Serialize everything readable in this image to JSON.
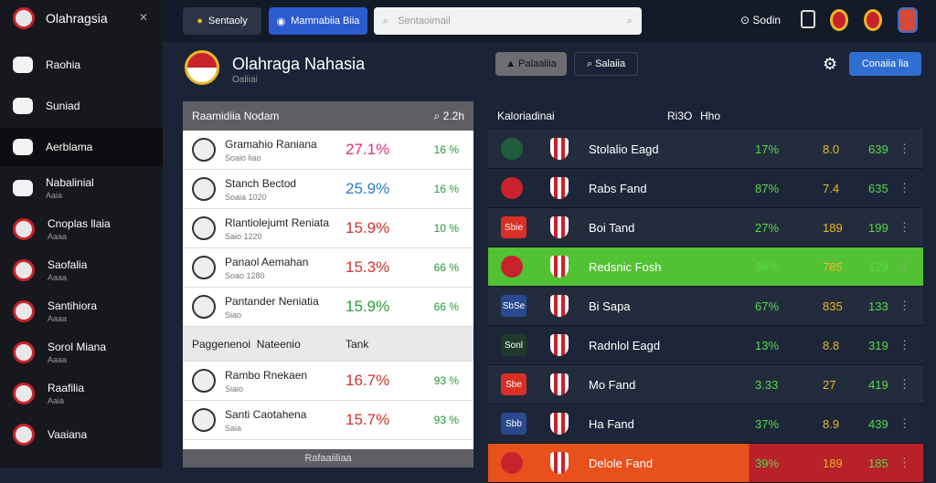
{
  "sidebar": {
    "brand": "Olahragsia",
    "items": [
      {
        "label": "Raohia",
        "sub": null
      },
      {
        "label": "Suniad",
        "sub": null
      },
      {
        "label": "Aerblama",
        "sub": null
      },
      {
        "label": "Nabalinial",
        "sub": "Aaia"
      },
      {
        "label": "Cnoplas llaia",
        "sub": "Aaaa"
      },
      {
        "label": "Saofalia",
        "sub": "Aaaa"
      },
      {
        "label": "Santihiora",
        "sub": "Aaaa"
      },
      {
        "label": "Sorol Miana",
        "sub": "Aaaa"
      },
      {
        "label": "Raafilia",
        "sub": "Aaia"
      },
      {
        "label": "Vaaiana",
        "sub": null
      }
    ]
  },
  "topbar": {
    "tab1": "Sentaoly",
    "tab2": "Mamnabiia Biia",
    "search": "Sentaoimail",
    "account": "Sodin"
  },
  "header": {
    "title": "Olahraga Nahasia",
    "subtitle": "Oaliiai",
    "filter1": "Palaaliia",
    "filter2": "Salaiia",
    "action": "Conaiia lia"
  },
  "left_panel": {
    "title": "Raamidiia Nodam",
    "count": "2.2h",
    "rows": [
      {
        "name": "Gramahio Raniana",
        "sub": "Soaio liao",
        "pct": "27.1%",
        "odds": "16 %"
      },
      {
        "name": "Stanch Bectod",
        "sub": "Soaia 1020",
        "pct": "25.9%",
        "odds": "16 %"
      },
      {
        "name": "Rlantiolejumt Reniata",
        "sub": "Saio 1220",
        "pct": "15.9%",
        "odds": "10 %"
      },
      {
        "name": "Panaol Aemahan",
        "sub": "Soao 1280",
        "pct": "15.3%",
        "odds": "66 %"
      },
      {
        "name": "Pantander Neniatia",
        "sub": "Siao",
        "pct": "15.9%",
        "odds": "66 %"
      }
    ],
    "section": {
      "col1": "Paggenenoi",
      "col2": "Nateenio",
      "col3": "Tank"
    },
    "rows2": [
      {
        "name": "Rambo Rnekaen",
        "sub": "Siaio",
        "pct": "16.7%",
        "odds": "93 %"
      },
      {
        "name": "Santi Caotahena",
        "sub": "Saia",
        "pct": "15.7%",
        "odds": "93 %"
      }
    ],
    "footer": "Rafaaiiliaa"
  },
  "right_table": {
    "title": "Kaloriadinai",
    "col1": "Ri3O",
    "col2": "Hho",
    "rows": [
      {
        "badge": null,
        "name": "Stolalio Eagd",
        "pct": "17%",
        "v1": "8.0",
        "v2": "639"
      },
      {
        "badge": null,
        "name": "Rabs Fand",
        "pct": "87%",
        "v1": "7.4",
        "v2": "635"
      },
      {
        "badge": "Sbie",
        "name": "Boi Tand",
        "pct": "27%",
        "v1": "189",
        "v2": "199"
      },
      {
        "badge": null,
        "name": "Redsnic Fosh",
        "pct": "39%",
        "v1": "785",
        "v2": "129"
      },
      {
        "badge": "SbSe",
        "name": "Bi Sapa",
        "pct": "67%",
        "v1": "835",
        "v2": "133"
      },
      {
        "badge": "Sonl",
        "name": "Radnlol Eagd",
        "pct": "13%",
        "v1": "8.8",
        "v2": "319"
      },
      {
        "badge": "Sbe",
        "name": "Mo Fand",
        "pct": "3.33",
        "v1": "27",
        "v2": "419"
      },
      {
        "badge": "Sbb",
        "name": "Ha Fand",
        "pct": "37%",
        "v1": "8.9",
        "v2": "439"
      },
      {
        "badge": null,
        "name": "Delole Fand",
        "pct": "39%",
        "v1": "189",
        "v2": "185"
      }
    ]
  }
}
